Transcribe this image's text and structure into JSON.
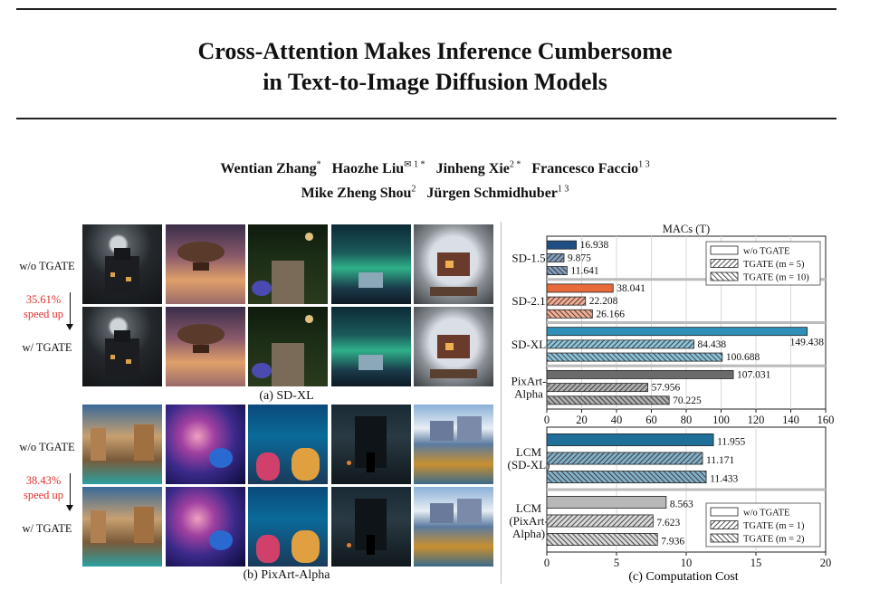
{
  "title": {
    "line1": "Cross-Attention Makes Inference Cumbersome",
    "line2": "in Text-to-Image Diffusion Models"
  },
  "authors": {
    "line1": [
      {
        "name": "Wentian Zhang",
        "sup": "*"
      },
      {
        "name": "Haozhe Liu",
        "sup": "✉ 1 *"
      },
      {
        "name": "Jinheng Xie",
        "sup": "2 *"
      },
      {
        "name": "Francesco Faccio",
        "sup": "1 3"
      }
    ],
    "line2": [
      {
        "name": "Mike Zheng Shou",
        "sup": "2"
      },
      {
        "name": "Jürgen Schmidhuber",
        "sup": "1 3"
      }
    ]
  },
  "figure": {
    "sdxl": {
      "label_without": "w/o TGATE",
      "label_with": "w/ TGATE",
      "speed_value": "35.61%",
      "speed_text": "speed up",
      "caption": "(a) SD-XL"
    },
    "pixart": {
      "label_without": "w/o TGATE",
      "label_with": "w/ TGATE",
      "speed_value": "38.43%",
      "speed_text": "speed up",
      "caption": "(b) PixArt-Alpha"
    },
    "cost_caption": "(c) Computation Cost"
  },
  "chart_data": [
    {
      "type": "bar",
      "orientation": "horizontal",
      "title": "MACs (T)",
      "xlim": [
        0,
        160
      ],
      "xticks": [
        0,
        20,
        40,
        60,
        80,
        100,
        120,
        140,
        160
      ],
      "grid": true,
      "legend_position": "top-right",
      "legend": [
        "w/o TGATE",
        "TGATE (m = 5)",
        "TGATE (m = 10)"
      ],
      "groups": [
        {
          "label": "SD-1.5",
          "color": "#1f4e85",
          "values": [
            16.938,
            9.875,
            11.641
          ],
          "labels": [
            "16.938",
            "9.875",
            "11.641"
          ]
        },
        {
          "label": "SD-2.1",
          "color": "#e8693a",
          "values": [
            38.041,
            22.208,
            26.166
          ],
          "labels": [
            "38.041",
            "22.208",
            "26.166"
          ]
        },
        {
          "label": "SD-XL",
          "color": "#2f8fb8",
          "values": [
            149.438,
            84.438,
            100.688
          ],
          "labels": [
            "149.438",
            "84.438",
            "100.688"
          ]
        },
        {
          "label": "PixArt-\nAlpha",
          "color": "#6b6b6b",
          "values": [
            107.031,
            57.956,
            70.225
          ],
          "labels": [
            "107.031",
            "57.956",
            "70.225"
          ]
        }
      ]
    },
    {
      "type": "bar",
      "orientation": "horizontal",
      "xlim": [
        0,
        20
      ],
      "xticks": [
        0,
        5,
        10,
        15,
        20
      ],
      "grid": true,
      "legend_position": "bottom-right",
      "legend": [
        "w/o TGATE",
        "TGATE (m = 1)",
        "TGATE (m = 2)"
      ],
      "groups": [
        {
          "label": "LCM\n(SD-XL)",
          "color": "#1f6f99",
          "values": [
            11.955,
            11.171,
            11.433
          ],
          "labels": [
            "11.955",
            "11.171",
            "11.433"
          ]
        },
        {
          "label": "LCM\n(PixArt-\nAlpha)",
          "color": "#b8b8b8",
          "values": [
            8.563,
            7.623,
            7.936
          ],
          "labels": [
            "8.563",
            "7.623",
            "7.936"
          ]
        }
      ]
    }
  ]
}
